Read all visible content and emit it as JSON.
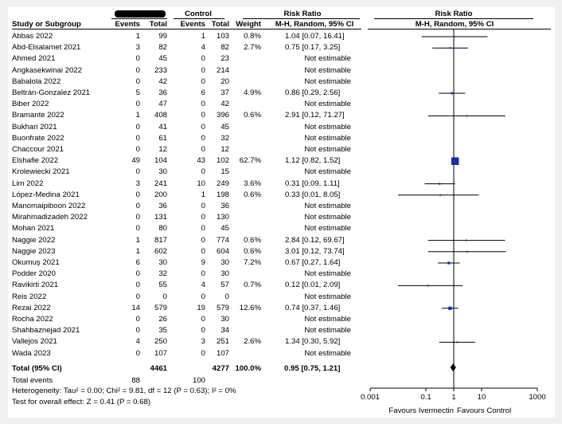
{
  "header": {
    "group1_label_redacted": true,
    "control_label": "Control",
    "risk_ratio_label": "Risk Ratio",
    "plot_header_label": "Risk Ratio",
    "col_study": "Study or Subgroup",
    "col_events1": "Events",
    "col_total1": "Total",
    "col_events2": "Events",
    "col_total2": "Total",
    "col_weight": "Weight",
    "col_rr": "M-H, Random, 95% CI",
    "plot_sub": "M-H, Random, 95% CI"
  },
  "chart_data": {
    "type": "forest",
    "scale": "log",
    "xlim": [
      0.001,
      1000
    ],
    "ticks": [
      "0.001",
      "0.1",
      "1",
      "10",
      "1000"
    ],
    "favours_left": "Favours Ivermectin",
    "favours_right": "Favours Control",
    "studies": [
      {
        "name": "Abbas 2022",
        "e1": "1",
        "t1": "99",
        "e2": "1",
        "t2": "103",
        "weight": "0.8%",
        "rr_text": "1.04 [0.07, 16.41]",
        "rr": 1.04,
        "lo": 0.07,
        "hi": 16.41
      },
      {
        "name": "Abd-Elsalamet 2021",
        "e1": "3",
        "t1": "82",
        "e2": "4",
        "t2": "82",
        "weight": "2.7%",
        "rr_text": "0.75 [0.17, 3.25]",
        "rr": 0.75,
        "lo": 0.17,
        "hi": 3.25
      },
      {
        "name": "Ahmed 2021",
        "e1": "0",
        "t1": "45",
        "e2": "0",
        "t2": "23",
        "weight": "",
        "rr_text": "Not estimable"
      },
      {
        "name": "Angkasekwinai 2022",
        "e1": "0",
        "t1": "233",
        "e2": "0",
        "t2": "214",
        "weight": "",
        "rr_text": "Not estimable"
      },
      {
        "name": "Babalola 2022",
        "e1": "0",
        "t1": "42",
        "e2": "0",
        "t2": "20",
        "weight": "",
        "rr_text": "Not estimable"
      },
      {
        "name": "Beltrán-Gonzalez 2021",
        "e1": "5",
        "t1": "36",
        "e2": "6",
        "t2": "37",
        "weight": "4.9%",
        "rr_text": "0.86 [0.29, 2.56]",
        "rr": 0.86,
        "lo": 0.29,
        "hi": 2.56
      },
      {
        "name": "Biber 2022",
        "e1": "0",
        "t1": "47",
        "e2": "0",
        "t2": "42",
        "weight": "",
        "rr_text": "Not estimable"
      },
      {
        "name": "Bramante 2022",
        "e1": "1",
        "t1": "408",
        "e2": "0",
        "t2": "396",
        "weight": "0.6%",
        "rr_text": "2.91 [0.12, 71.27]",
        "rr": 2.91,
        "lo": 0.12,
        "hi": 71.27
      },
      {
        "name": "Bukhari 2021",
        "e1": "0",
        "t1": "41",
        "e2": "0",
        "t2": "45",
        "weight": "",
        "rr_text": "Not estimable"
      },
      {
        "name": "Buonfrate 2022",
        "e1": "0",
        "t1": "61",
        "e2": "0",
        "t2": "32",
        "weight": "",
        "rr_text": "Not estimable"
      },
      {
        "name": "Chaccour 2021",
        "e1": "0",
        "t1": "12",
        "e2": "0",
        "t2": "12",
        "weight": "",
        "rr_text": "Not estimable"
      },
      {
        "name": "Elshafie 2022",
        "e1": "49",
        "t1": "104",
        "e2": "43",
        "t2": "102",
        "weight": "62.7%",
        "rr_text": "1.12 [0.82, 1.52]",
        "rr": 1.12,
        "lo": 0.82,
        "hi": 1.52
      },
      {
        "name": "Krolewiecki 2021",
        "e1": "0",
        "t1": "30",
        "e2": "0",
        "t2": "15",
        "weight": "",
        "rr_text": "Not estimable"
      },
      {
        "name": "Lim 2022",
        "e1": "3",
        "t1": "241",
        "e2": "10",
        "t2": "249",
        "weight": "3.6%",
        "rr_text": "0.31 [0.09, 1.11]",
        "rr": 0.31,
        "lo": 0.09,
        "hi": 1.11
      },
      {
        "name": "López-Medina 2021",
        "e1": "0",
        "t1": "200",
        "e2": "1",
        "t2": "198",
        "weight": "0.6%",
        "rr_text": "0.33 [0.01, 8.05]",
        "rr": 0.33,
        "lo": 0.01,
        "hi": 8.05
      },
      {
        "name": "Manomaipiboon 2022",
        "e1": "0",
        "t1": "36",
        "e2": "0",
        "t2": "36",
        "weight": "",
        "rr_text": "Not estimable"
      },
      {
        "name": "Mirahmadizadeh 2022",
        "e1": "0",
        "t1": "131",
        "e2": "0",
        "t2": "130",
        "weight": "",
        "rr_text": "Not estimable"
      },
      {
        "name": "Mohan 2021",
        "e1": "0",
        "t1": "80",
        "e2": "0",
        "t2": "45",
        "weight": "",
        "rr_text": "Not estimable"
      },
      {
        "name": "Naggie 2022",
        "e1": "1",
        "t1": "817",
        "e2": "0",
        "t2": "774",
        "weight": "0.6%",
        "rr_text": "2.84 [0.12, 69.67]",
        "rr": 2.84,
        "lo": 0.12,
        "hi": 69.67
      },
      {
        "name": "Naggie 2023",
        "e1": "1",
        "t1": "602",
        "e2": "0",
        "t2": "604",
        "weight": "0.6%",
        "rr_text": "3.01 [0.12, 73.74]",
        "rr": 3.01,
        "lo": 0.12,
        "hi": 73.74
      },
      {
        "name": "Okumuş 2021",
        "e1": "6",
        "t1": "30",
        "e2": "9",
        "t2": "30",
        "weight": "7.2%",
        "rr_text": "0.67 [0.27, 1.64]",
        "rr": 0.67,
        "lo": 0.27,
        "hi": 1.64
      },
      {
        "name": "Podder 2020",
        "e1": "0",
        "t1": "32",
        "e2": "0",
        "t2": "30",
        "weight": "",
        "rr_text": "Not estimable"
      },
      {
        "name": "Ravikirti 2021",
        "e1": "0",
        "t1": "55",
        "e2": "4",
        "t2": "57",
        "weight": "0.7%",
        "rr_text": "0.12 [0.01, 2.09]",
        "rr": 0.12,
        "lo": 0.01,
        "hi": 2.09
      },
      {
        "name": "Reis 2022",
        "e1": "0",
        "t1": "0",
        "e2": "0",
        "t2": "0",
        "weight": "",
        "rr_text": "Not estimable"
      },
      {
        "name": "Rezai 2022",
        "e1": "14",
        "t1": "579",
        "e2": "19",
        "t2": "579",
        "weight": "12.6%",
        "rr_text": "0.74 [0.37, 1.46]",
        "rr": 0.74,
        "lo": 0.37,
        "hi": 1.46
      },
      {
        "name": "Rocha 2022",
        "e1": "0",
        "t1": "26",
        "e2": "0",
        "t2": "30",
        "weight": "",
        "rr_text": "Not estimable"
      },
      {
        "name": "Shahbaznejad 2021",
        "e1": "0",
        "t1": "35",
        "e2": "0",
        "t2": "34",
        "weight": "",
        "rr_text": "Not estimable"
      },
      {
        "name": "Vallejos 2021",
        "e1": "4",
        "t1": "250",
        "e2": "3",
        "t2": "251",
        "weight": "2.6%",
        "rr_text": "1.34 [0.30, 5.92]",
        "rr": 1.34,
        "lo": 0.3,
        "hi": 5.92
      },
      {
        "name": "Wada 2023",
        "e1": "0",
        "t1": "107",
        "e2": "0",
        "t2": "107",
        "weight": "",
        "rr_text": "Not estimable"
      }
    ],
    "total": {
      "label": "Total (95% CI)",
      "t1": "4461",
      "t2": "4277",
      "weight": "100.0%",
      "rr_text": "0.95 [0.75, 1.21]",
      "rr": 0.95,
      "lo": 0.75,
      "hi": 1.21
    },
    "total_events": {
      "label": "Total events",
      "e1": "88",
      "e2": "100"
    },
    "heterogeneity": "Heterogeneity: Tau² = 0.00; Chi² = 9.81, df = 12 (P = 0.63); I² = 0%",
    "overall_effect": "Test for overall effect: Z = 0.41 (P = 0.68)"
  }
}
